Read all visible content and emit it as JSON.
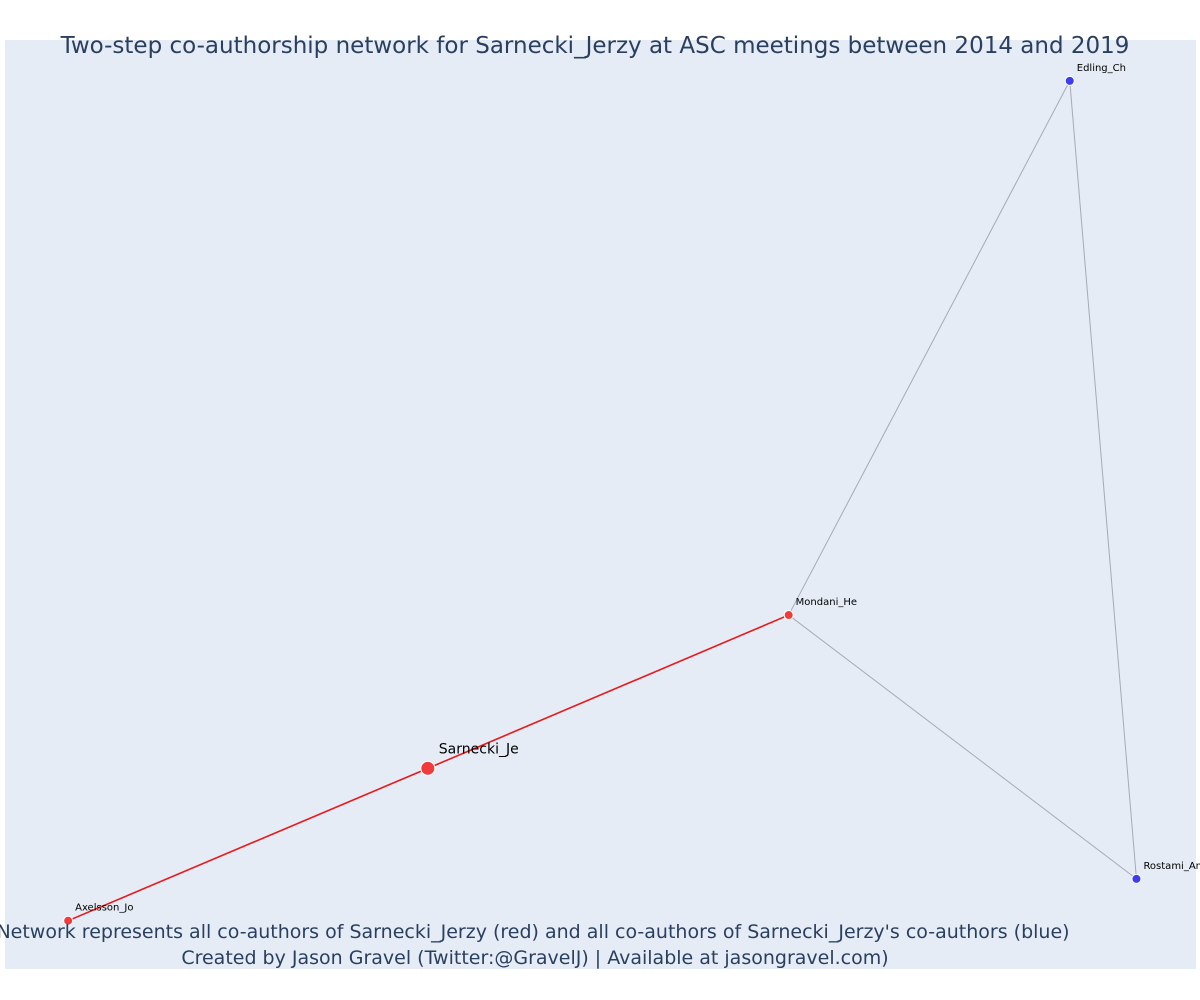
{
  "title": "Two-step co-authorship network for Sarnecki_Jerzy at ASC meetings between 2014 and 2019",
  "caption": {
    "line1": "Network represents all co-authors of Sarnecki_Jerzy (red) and all co-authors of Sarnecki_Jerzy's co-authors (blue)",
    "line2": "Created by Jason Gravel (Twitter:@GravelJ) | Available at jasongravel.com)"
  },
  "colors": {
    "background": "#e5ecf6",
    "first_degree": "#ef3b3b",
    "second_degree": "#3d3ded",
    "red_edge": "#e8191c",
    "grey_edge": "#a7a9b8",
    "text": "#2a3f5f"
  },
  "chart_data": {
    "type": "network",
    "x_range": [
      0,
      100
    ],
    "y_range": [
      0,
      100
    ],
    "nodes": [
      {
        "id": "Sarnecki_Je",
        "label": "Sarnecki_Je",
        "group": "ego",
        "x": 35.5,
        "y": 21.6
      },
      {
        "id": "Mondani_He",
        "label": "Mondani_He",
        "group": "first",
        "x": 65.8,
        "y": 38.1
      },
      {
        "id": "Axelsson_Jo",
        "label": "Axelsson_Jo",
        "group": "first",
        "x": 5.3,
        "y": 5.2
      },
      {
        "id": "Edling_Ch",
        "label": "Edling_Ch",
        "group": "second",
        "x": 89.4,
        "y": 95.6
      },
      {
        "id": "Rostami_Am",
        "label": "Rostami_Am",
        "group": "second",
        "x": 95.0,
        "y": 9.7
      }
    ],
    "edges": [
      {
        "source": "Sarnecki_Je",
        "target": "Mondani_He",
        "type": "first"
      },
      {
        "source": "Sarnecki_Je",
        "target": "Axelsson_Jo",
        "type": "first"
      },
      {
        "source": "Mondani_He",
        "target": "Edling_Ch",
        "type": "second"
      },
      {
        "source": "Mondani_He",
        "target": "Rostami_Am",
        "type": "second"
      },
      {
        "source": "Edling_Ch",
        "target": "Rostami_Am",
        "type": "second"
      }
    ]
  }
}
